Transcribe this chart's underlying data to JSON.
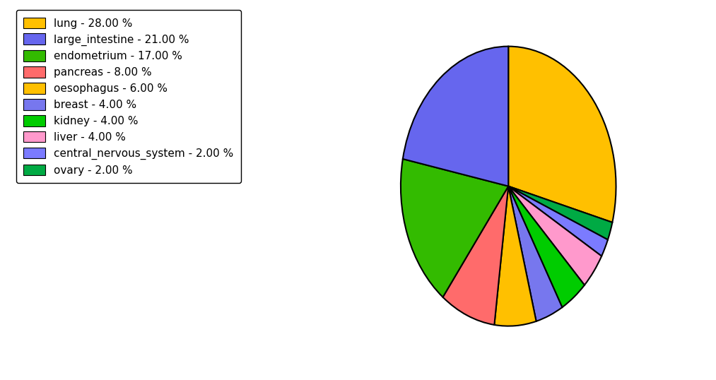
{
  "labels": [
    "lung",
    "ovary",
    "central_nervous_system",
    "liver",
    "kidney",
    "breast",
    "oesophagus",
    "pancreas",
    "endometrium",
    "large_intestine"
  ],
  "values": [
    28,
    2,
    2,
    4,
    4,
    4,
    6,
    8,
    17,
    21
  ],
  "colors": [
    "#FFC000",
    "#00AA44",
    "#7B7BFF",
    "#FF99CC",
    "#00CC00",
    "#7777EE",
    "#FFC000",
    "#FF6B6B",
    "#33BB00",
    "#6666EE"
  ],
  "legend_labels": [
    "lung - 28.00 %",
    "large_intestine - 21.00 %",
    "endometrium - 17.00 %",
    "pancreas - 8.00 %",
    "oesophagus - 6.00 %",
    "breast - 4.00 %",
    "kidney - 4.00 %",
    "liver - 4.00 %",
    "central_nervous_system - 2.00 %",
    "ovary - 2.00 %"
  ],
  "legend_colors": [
    "#FFC000",
    "#6666EE",
    "#33BB00",
    "#FF6B6B",
    "#FFC000",
    "#7777EE",
    "#00CC00",
    "#FF99CC",
    "#7B7BFF",
    "#00AA44"
  ],
  "startangle": 90,
  "background_color": "#ffffff",
  "figsize": [
    10.13,
    5.38
  ]
}
